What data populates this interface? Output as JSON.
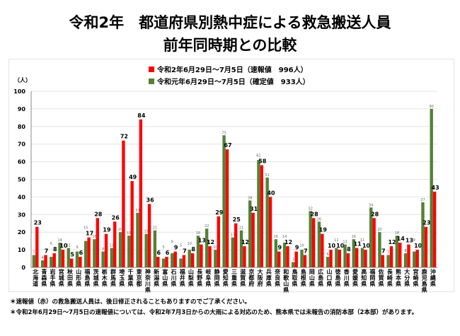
{
  "title_line1": "令和2年　都道府県別熱中症による救急搬送人員",
  "title_line2": "前年同時期との比較",
  "footnotes": [
    "＊速報値（赤）の救急搬送人員は、後日修正されることもありますのでご了承ください。",
    "＊令和2年6月29日～7月5日の速報値については、令和2年7月3日からの大雨による対応のため、熊本県では未報告の消防本部（2本部）があります。"
  ],
  "chart_data": {
    "type": "bar",
    "ylabel": "（人）",
    "ylim": [
      0,
      100
    ],
    "yticks": [
      0,
      10,
      20,
      30,
      40,
      50,
      60,
      70,
      80,
      90,
      100
    ],
    "grid": true,
    "legend_placement": "top-center",
    "categories": [
      "北海道",
      "青森県",
      "岩手県",
      "宮城県",
      "秋田県",
      "山形県",
      "福島県",
      "茨城県",
      "栃木県",
      "群馬県",
      "埼玉県",
      "千葉県",
      "東京都",
      "神奈川県",
      "新潟県",
      "富山県",
      "石川県",
      "福井県",
      "山梨県",
      "長野県",
      "岐阜県",
      "静岡県",
      "愛知県",
      "三重県",
      "滋賀県",
      "京都府",
      "大阪府",
      "兵庫県",
      "奈良県",
      "和歌山県",
      "鳥取県",
      "島根県",
      "岡山県",
      "広島県",
      "山口県",
      "徳島県",
      "香川県",
      "愛媛県",
      "高知県",
      "福岡県",
      "佐賀県",
      "長崎県",
      "熊本県",
      "大分県",
      "宮崎県",
      "鹿児島県",
      "沖縄県"
    ],
    "series": [
      {
        "name": "令和元年6月29日～7月5日（確定値　933人）",
        "color": "#538135",
        "values": [
          7,
          4,
          6,
          14,
          11,
          9,
          15,
          16,
          9,
          11,
          20,
          18,
          31,
          19,
          21,
          5,
          8,
          5,
          10,
          18,
          22,
          10,
          75,
          17,
          21,
          38,
          61,
          51,
          16,
          14,
          3,
          10,
          32,
          26,
          6,
          11,
          13,
          16,
          11,
          34,
          20,
          7,
          18,
          8,
          9,
          37,
          90
        ]
      },
      {
        "name": "令和2年6月29日～7月5日（速報値　996人）",
        "color": "#ff0000",
        "values": [
          23,
          7,
          8,
          10,
          5,
          6,
          17,
          28,
          19,
          26,
          72,
          49,
          84,
          36,
          6,
          6,
          9,
          7,
          8,
          13,
          12,
          29,
          67,
          25,
          12,
          31,
          58,
          40,
          9,
          12,
          9,
          7,
          28,
          19,
          10,
          10,
          8,
          11,
          10,
          28,
          7,
          12,
          14,
          13,
          10,
          23,
          43
        ]
      }
    ]
  }
}
